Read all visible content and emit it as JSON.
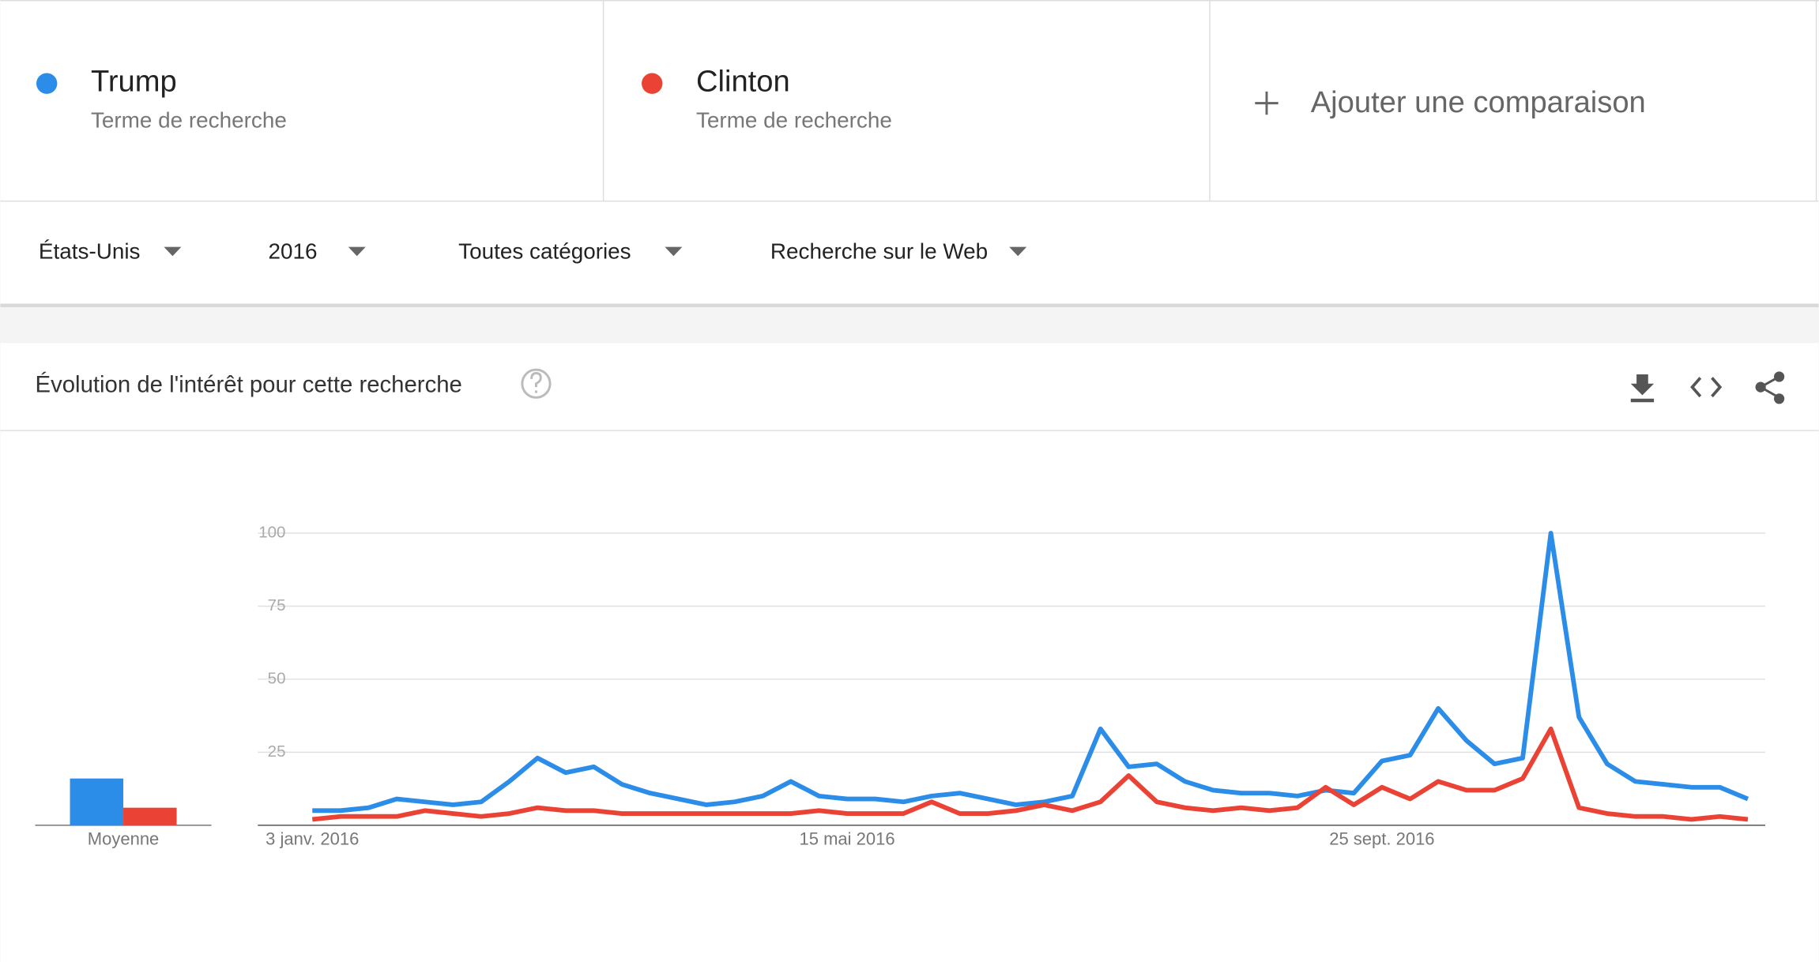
{
  "terms": [
    {
      "subtitle": "Terme de recherche"
    },
    {
      "subtitle": "Terme de recherche"
    }
  ],
  "add_comparison": "Ajouter une comparaison",
  "filters": [
    "États-Unis",
    "2016",
    "Toutes catégories",
    "Recherche sur le Web"
  ],
  "chart_data": {
    "type": "line",
    "title": "Évolution de l'intérêt pour cette recherche",
    "categories": [
      "3 janv. 2016",
      null,
      null,
      null,
      null,
      null,
      null,
      null,
      null,
      null,
      null,
      null,
      null,
      null,
      null,
      null,
      null,
      null,
      null,
      "15 mai 2016",
      null,
      null,
      null,
      null,
      null,
      null,
      null,
      null,
      null,
      null,
      null,
      null,
      null,
      null,
      null,
      null,
      null,
      null,
      "25 sept. 2016",
      null,
      null,
      null,
      null,
      null,
      null,
      null,
      null,
      null,
      null,
      null,
      null,
      null
    ],
    "series": [
      {
        "name": "Trump",
        "color": "#2b8de8",
        "average": 16,
        "values": [
          5,
          5,
          6,
          9,
          8,
          7,
          8,
          15,
          23,
          18,
          20,
          14,
          11,
          9,
          7,
          8,
          10,
          15,
          10,
          9,
          9,
          8,
          10,
          11,
          9,
          7,
          8,
          10,
          33,
          20,
          21,
          15,
          12,
          11,
          11,
          10,
          12,
          11,
          22,
          24,
          40,
          29,
          21,
          23,
          100,
          37,
          21,
          15,
          14,
          13,
          13,
          9
        ]
      },
      {
        "name": "Clinton",
        "color": "#ea4335",
        "average": 6,
        "values": [
          2,
          3,
          3,
          3,
          5,
          4,
          3,
          4,
          6,
          5,
          5,
          4,
          4,
          4,
          4,
          4,
          4,
          4,
          5,
          4,
          4,
          4,
          8,
          4,
          4,
          5,
          7,
          5,
          8,
          17,
          8,
          6,
          5,
          6,
          5,
          6,
          13,
          7,
          13,
          9,
          15,
          12,
          12,
          16,
          33,
          6,
          4,
          3,
          3,
          2,
          3,
          2
        ]
      }
    ],
    "average_label": "Moyenne",
    "ylim": [
      0,
      100
    ],
    "yticks": [
      25,
      50,
      75,
      100
    ],
    "grid": true
  }
}
